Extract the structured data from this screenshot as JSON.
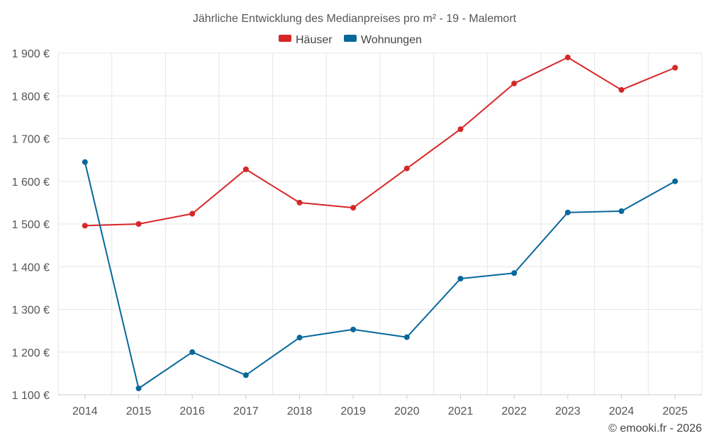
{
  "chart_data": {
    "type": "line",
    "title": "Jährliche Entwicklung des Medianpreises pro m² - 19 - Malemort",
    "categories": [
      "2014",
      "2015",
      "2016",
      "2017",
      "2018",
      "2019",
      "2020",
      "2021",
      "2022",
      "2023",
      "2024",
      "2025"
    ],
    "series": [
      {
        "name": "Häuser",
        "color": "#d62728",
        "values": [
          1496,
          1500,
          1524,
          1628,
          1550,
          1538,
          1630,
          1722,
          1829,
          1890,
          1814,
          1866
        ]
      },
      {
        "name": "Wohnungen",
        "color": "#08689b",
        "values": [
          1645,
          1115,
          1200,
          1146,
          1234,
          1253,
          1235,
          1372,
          1385,
          1527,
          1530,
          1600
        ]
      }
    ],
    "ylim": [
      1100,
      1900
    ],
    "yticks": [
      1100,
      1200,
      1300,
      1400,
      1500,
      1600,
      1700,
      1800,
      1900
    ],
    "ytick_labels": [
      "1 100 €",
      "1 200 €",
      "1 300 €",
      "1 400 €",
      "1 500 €",
      "1 600 €",
      "1 700 €",
      "1 800 €",
      "1 900 €"
    ],
    "xlabel": "",
    "ylabel": "",
    "grid": true,
    "legend_position": "top-center"
  },
  "footer": {
    "credit": "© emooki.fr - 2026"
  }
}
